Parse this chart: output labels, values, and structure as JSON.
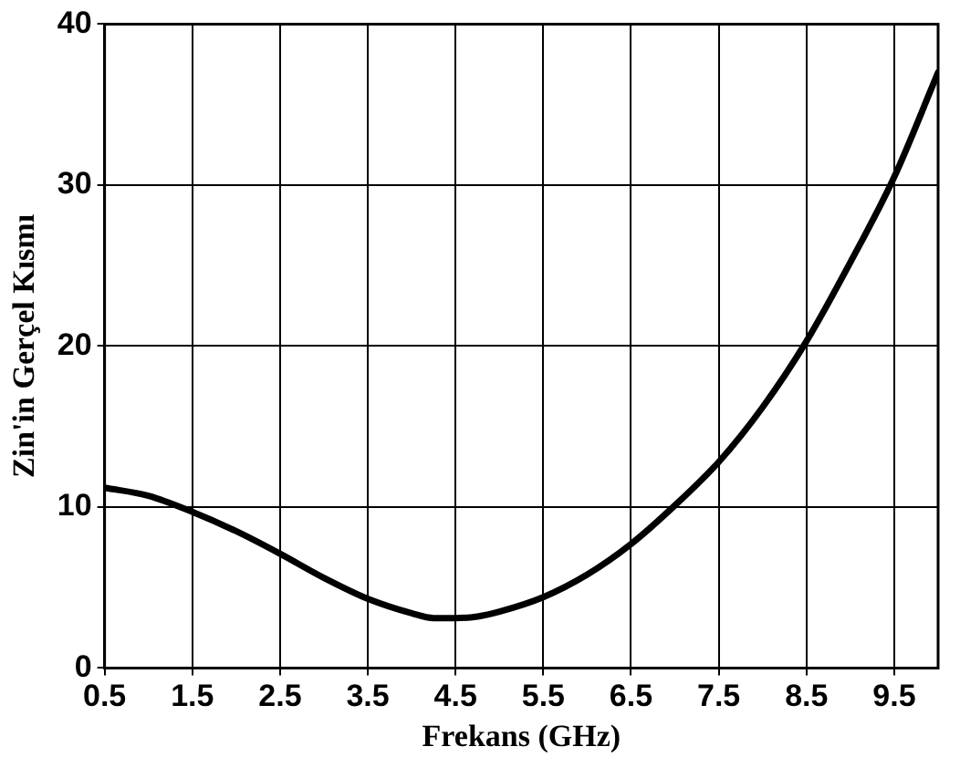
{
  "chart_data": {
    "type": "line",
    "xlabel": "Frekans (GHz)",
    "ylabel": "Zin'in Gerçel Kısmı",
    "x": [
      0.5,
      1,
      1.5,
      2,
      2.5,
      3,
      3.5,
      4,
      4.25,
      4.5,
      4.75,
      5,
      5.5,
      6,
      6.5,
      7,
      7.5,
      8,
      8.5,
      9,
      9.5,
      10
    ],
    "series": [
      {
        "color": "#000000",
        "values": [
          11.2,
          10.7,
          9.7,
          8.5,
          7.1,
          5.6,
          4.3,
          3.4,
          3.1,
          3.1,
          3.2,
          3.5,
          4.4,
          5.8,
          7.7,
          10.1,
          12.8,
          16.2,
          20.3,
          25.2,
          30.5,
          37.0
        ]
      }
    ],
    "xlim": [
      0.5,
      10
    ],
    "xticks": [
      0.5,
      1.5,
      2.5,
      3.5,
      4.5,
      5.5,
      6.5,
      7.5,
      8.5,
      9.5
    ],
    "ylim": [
      0,
      40
    ],
    "yticks": [
      0,
      10,
      20,
      30,
      40
    ],
    "grid": true,
    "legend": false,
    "marker": "none",
    "line_style": "solid"
  }
}
